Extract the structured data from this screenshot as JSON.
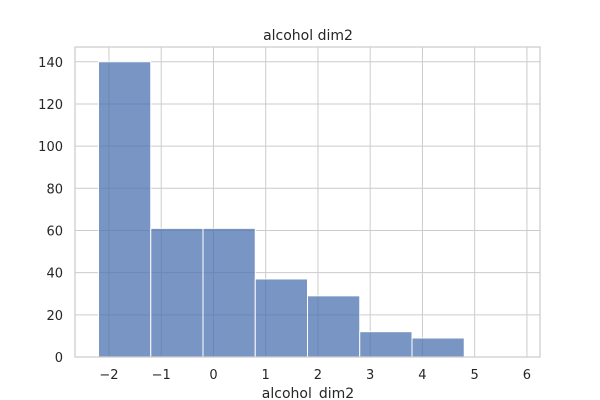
{
  "chart_data": {
    "type": "histogram",
    "title": "alcohol dim2",
    "xlabel": "alcohol_dim2",
    "ylabel": "",
    "xlim": [
      -2.65,
      6.25
    ],
    "ylim": [
      0,
      147
    ],
    "x_ticks": [
      -2,
      -1,
      0,
      1,
      2,
      3,
      4,
      5,
      6
    ],
    "x_tick_labels": [
      "−2",
      "−1",
      "0",
      "1",
      "2",
      "3",
      "4",
      "5",
      "6"
    ],
    "y_ticks": [
      0,
      20,
      40,
      60,
      80,
      100,
      120,
      140
    ],
    "y_tick_labels": [
      "0",
      "20",
      "40",
      "60",
      "80",
      "100",
      "120",
      "140"
    ],
    "grid": true,
    "bar_color": "#4c72b0",
    "bins": [
      {
        "x0": -2.2,
        "x1": -1.2,
        "count": 140
      },
      {
        "x0": -1.2,
        "x1": -0.2,
        "count": 61
      },
      {
        "x0": -0.2,
        "x1": 0.8,
        "count": 61
      },
      {
        "x0": 0.8,
        "x1": 1.8,
        "count": 37
      },
      {
        "x0": 1.8,
        "x1": 2.8,
        "count": 29
      },
      {
        "x0": 2.8,
        "x1": 3.8,
        "count": 12
      },
      {
        "x0": 3.8,
        "x1": 4.8,
        "count": 9
      },
      {
        "x0": 4.8,
        "x1": 5.8,
        "count": 0
      }
    ]
  }
}
